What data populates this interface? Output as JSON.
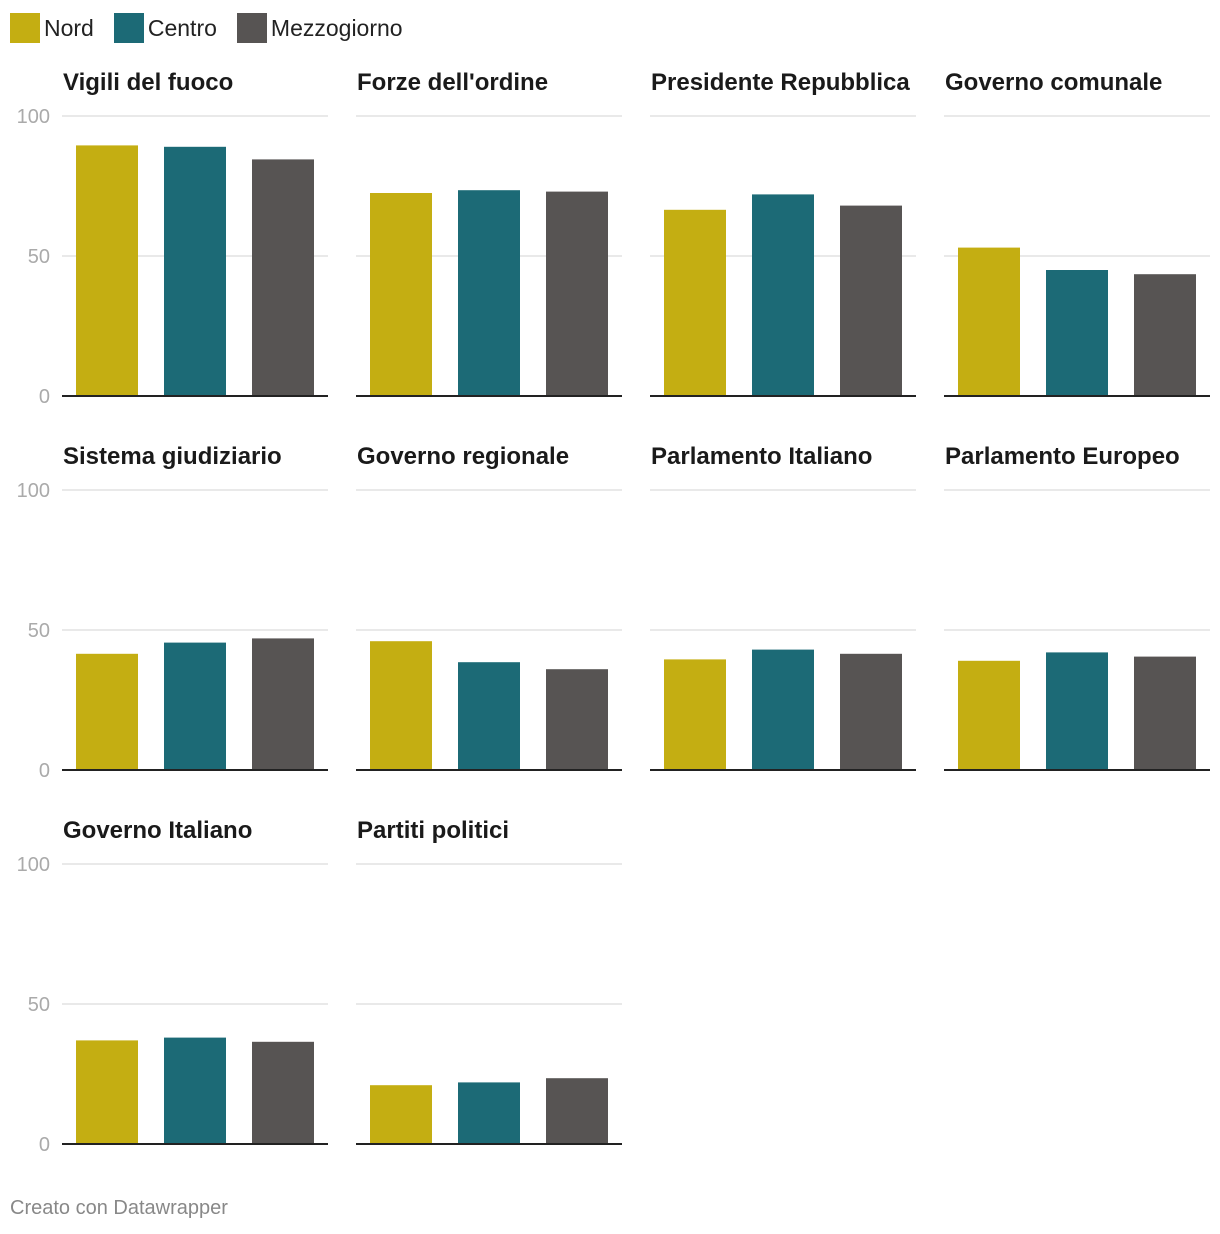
{
  "legend": [
    {
      "label": "Nord",
      "color": "#c4ae12"
    },
    {
      "label": "Centro",
      "color": "#1c6a76"
    },
    {
      "label": "Mezzogiorno",
      "color": "#575453"
    }
  ],
  "footer": "Creato con Datawrapper",
  "chart_data": {
    "type": "bar",
    "layout": "small-multiples",
    "categories": [
      "Nord",
      "Centro",
      "Mezzogiorno"
    ],
    "ylim": [
      0,
      100
    ],
    "yticks": [
      "0",
      "50",
      "100"
    ],
    "grid": true,
    "legend_position": "top-left",
    "panels": [
      {
        "title": "Vigili del fuoco",
        "values": [
          89.5,
          89,
          84.5
        ]
      },
      {
        "title": "Forze dell'ordine",
        "values": [
          72.5,
          73.5,
          73
        ]
      },
      {
        "title": "Presidente Repubblica",
        "values": [
          66.5,
          72,
          68
        ]
      },
      {
        "title": "Governo comunale",
        "values": [
          53,
          45,
          43.5
        ]
      },
      {
        "title": "Sistema giudiziario",
        "values": [
          41.5,
          45.5,
          47
        ]
      },
      {
        "title": "Governo regionale",
        "values": [
          46,
          38.5,
          36
        ]
      },
      {
        "title": "Parlamento Italiano",
        "values": [
          39.5,
          43,
          41.5
        ]
      },
      {
        "title": "Parlamento Europeo",
        "values": [
          39,
          42,
          40.5
        ]
      },
      {
        "title": "Governo Italiano",
        "values": [
          37,
          38,
          36.5
        ]
      },
      {
        "title": "Partiti politici",
        "values": [
          21,
          22,
          23.5
        ]
      }
    ]
  }
}
